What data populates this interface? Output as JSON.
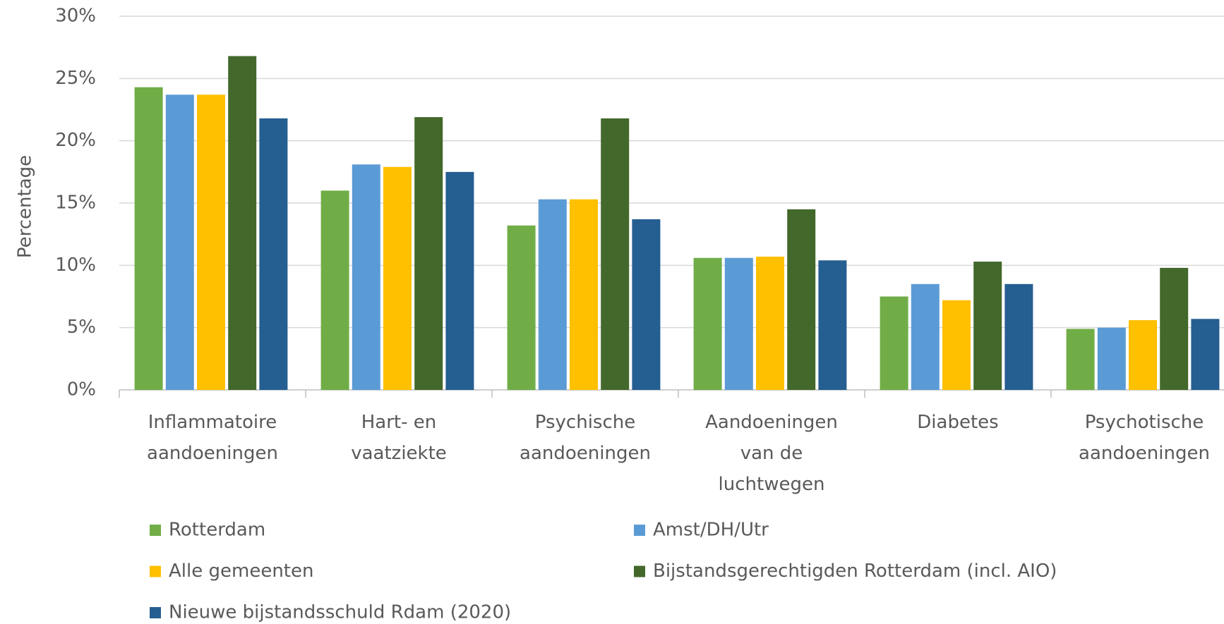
{
  "chart_data": {
    "type": "bar",
    "y_label": "Percentage",
    "categories": [
      "Inflammatoire aandoeningen",
      "Hart- en vaatziekte",
      "Psychische aandoeningen",
      "Aandoeningen van de luchtwegen",
      "Diabetes",
      "Psychotische aandoeningen"
    ],
    "series": [
      {
        "name": "Rotterdam",
        "color": "#70ad47",
        "values": [
          24.3,
          16.0,
          13.2,
          10.6,
          7.5,
          4.9
        ]
      },
      {
        "name": "Amst/DH/Utr",
        "color": "#5b9bd5",
        "values": [
          23.7,
          18.1,
          15.3,
          10.6,
          8.5,
          5.0
        ]
      },
      {
        "name": "Alle gemeenten",
        "color": "#ffc000",
        "values": [
          23.7,
          17.9,
          15.3,
          10.7,
          7.2,
          5.6
        ]
      },
      {
        "name": "Bijstandsgerechtigden Rotterdam (incl. AIO)",
        "color": "#43682b",
        "values": [
          26.8,
          21.9,
          21.8,
          14.5,
          10.3,
          9.8
        ]
      },
      {
        "name": "Nieuwe bijstandsschuld Rdam (2020)",
        "color": "#255e91",
        "values": [
          21.8,
          17.5,
          13.7,
          10.4,
          8.5,
          5.7
        ]
      }
    ],
    "ylim": [
      0,
      30
    ],
    "yticks": [
      {
        "value": 0,
        "label": "0%"
      },
      {
        "value": 5,
        "label": "5%"
      },
      {
        "value": 10,
        "label": "10%"
      },
      {
        "value": 15,
        "label": "15%"
      },
      {
        "value": 20,
        "label": "20%"
      },
      {
        "value": 25,
        "label": "25%"
      },
      {
        "value": 30,
        "label": "30%"
      }
    ],
    "grid": true,
    "legend": "bottom"
  }
}
